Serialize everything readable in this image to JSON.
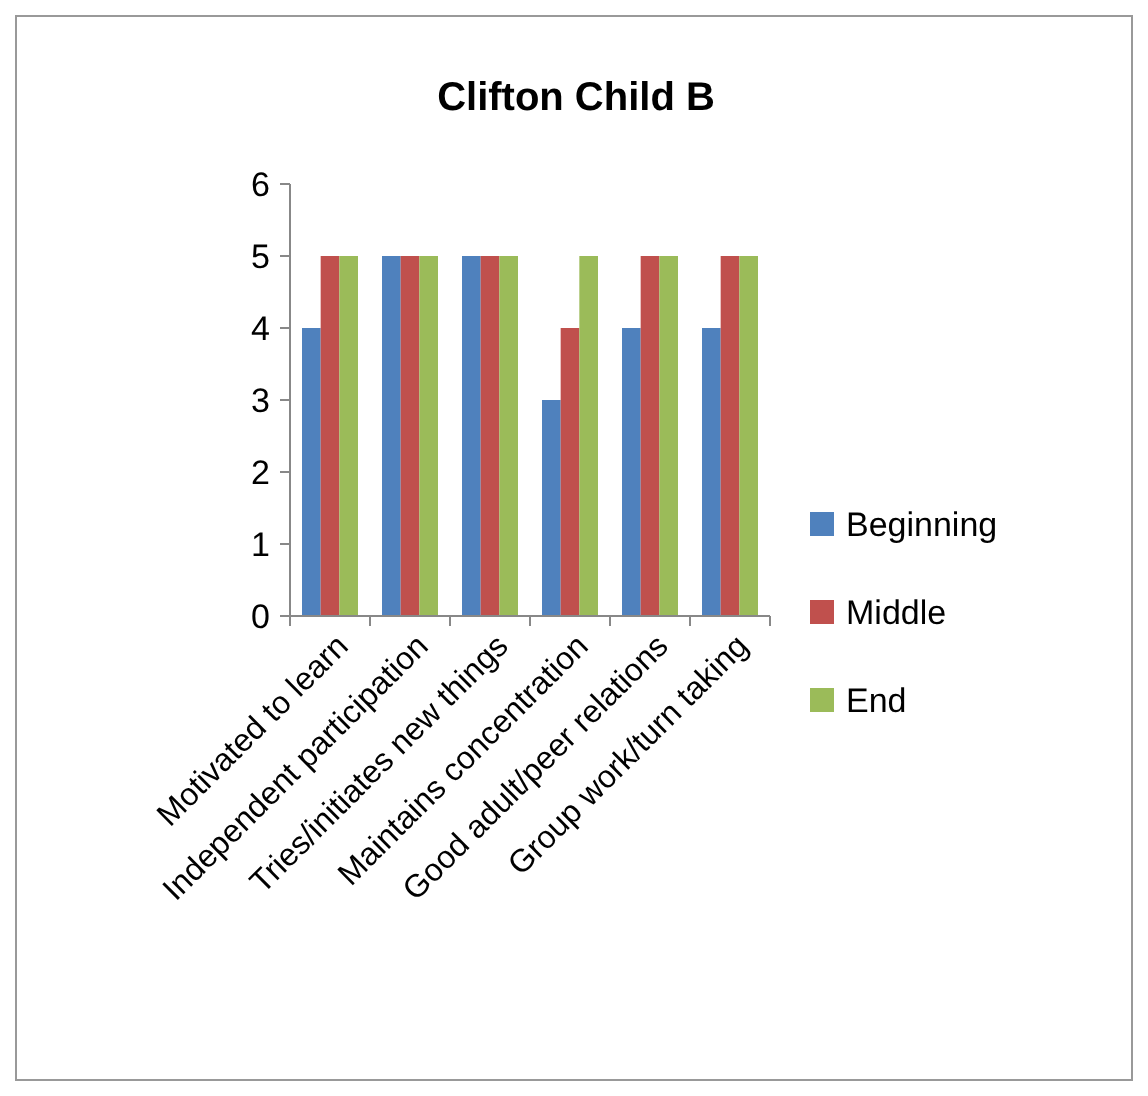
{
  "chart_data": {
    "type": "bar",
    "title": "Clifton Child  B",
    "categories": [
      "Motivated to learn",
      "Independent participation",
      "Tries/initiates new things",
      "Maintains concentration",
      "Good adult/peer relations",
      "Group work/turn taking"
    ],
    "series": [
      {
        "name": "Beginning",
        "color": "#4f81bd",
        "values": [
          4,
          5,
          5,
          3,
          4,
          4
        ]
      },
      {
        "name": "Middle",
        "color": "#c0504d",
        "values": [
          5,
          5,
          5,
          4,
          5,
          5
        ]
      },
      {
        "name": "End",
        "color": "#9bbb59",
        "values": [
          5,
          5,
          5,
          5,
          5,
          5
        ]
      }
    ],
    "ylim": [
      0,
      6
    ],
    "yticks": [
      0,
      1,
      2,
      3,
      4,
      5,
      6
    ],
    "grid": false,
    "legend": "right"
  }
}
